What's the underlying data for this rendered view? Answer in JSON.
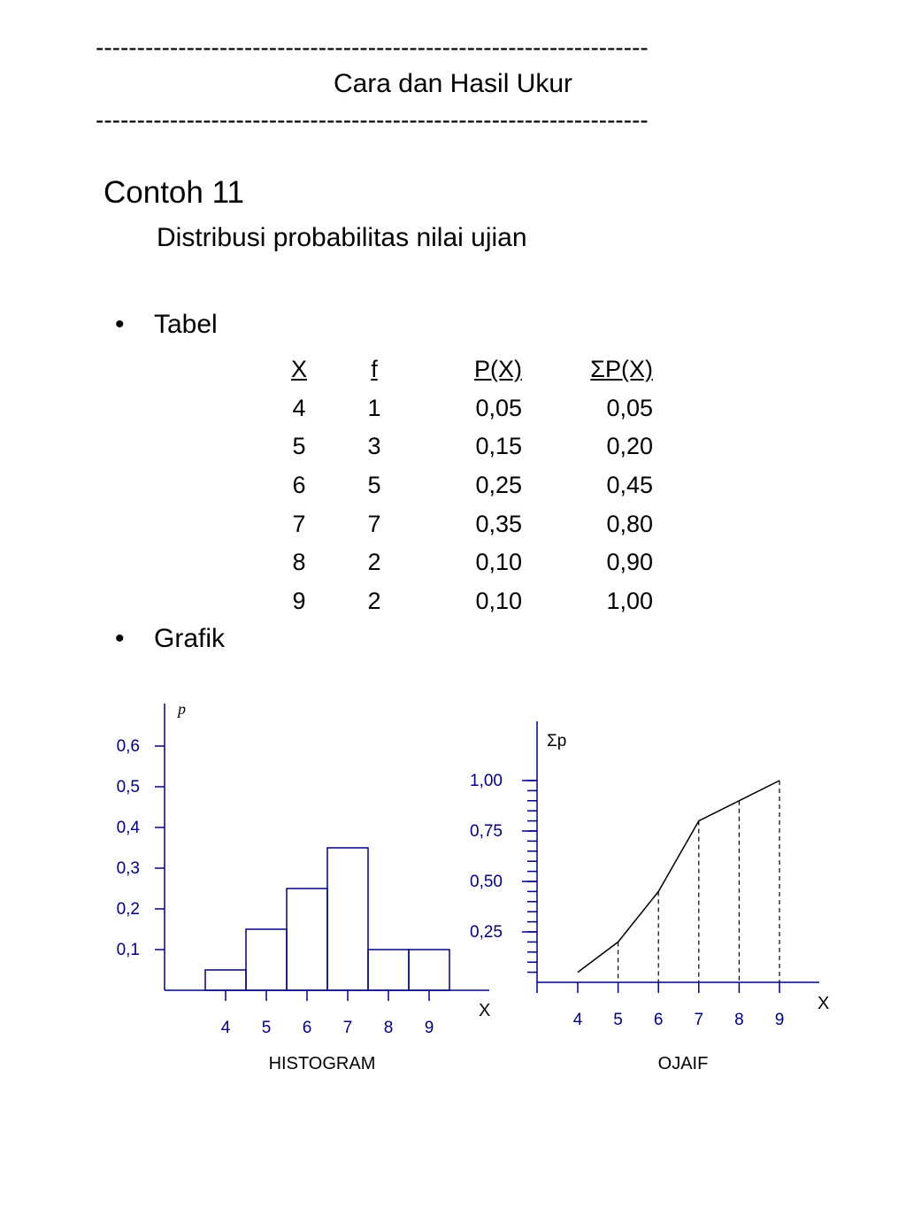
{
  "header": {
    "rule": "-------------------------------------------------------------------",
    "title": "Cara dan Hasil Ukur"
  },
  "example_title": "Contoh 11",
  "subtitle": "Distribusi probabilitas nilai ujian",
  "bullet_symbol": "•",
  "tabel_label": "Tabel",
  "grafik_label": "Grafik",
  "table": {
    "headers": [
      "X",
      "f",
      "P(X)",
      "ΣP(X)"
    ],
    "rows": [
      [
        "4",
        "1",
        "0,05",
        "0,05"
      ],
      [
        "5",
        "3",
        "0,15",
        "0,20"
      ],
      [
        "6",
        "5",
        "0,25",
        "0,45"
      ],
      [
        "7",
        "7",
        "0,35",
        "0,80"
      ],
      [
        "8",
        "2",
        "0,10",
        "0,90"
      ],
      [
        "9",
        "2",
        "0,10",
        "1,00"
      ]
    ]
  },
  "chart_data": [
    {
      "type": "bar",
      "title": "HISTOGRAM",
      "xlabel": "X",
      "ylabel": "p",
      "categories": [
        "4",
        "5",
        "6",
        "7",
        "8",
        "9"
      ],
      "values": [
        0.05,
        0.15,
        0.25,
        0.35,
        0.1,
        0.1
      ],
      "ylim": [
        0,
        0.6
      ],
      "yticks": [
        0.1,
        0.2,
        0.3,
        0.4,
        0.5,
        0.6
      ],
      "ytick_labels": [
        "0,1",
        "0,2",
        "0,3",
        "0,4",
        "0,5",
        "0,6"
      ],
      "bar_color": "#000080",
      "axis_color": "#000080",
      "grid": false
    },
    {
      "type": "line",
      "title": "OJAIF",
      "xlabel": "X",
      "ylabel": "Σp",
      "x": [
        4,
        5,
        6,
        7,
        8,
        9
      ],
      "y": [
        0.05,
        0.2,
        0.45,
        0.8,
        0.9,
        1.0
      ],
      "xtick_labels": [
        "4",
        "5",
        "6",
        "7",
        "8",
        "9"
      ],
      "ylim": [
        0,
        1.0
      ],
      "yticks": [
        0.25,
        0.5,
        0.75,
        1.0
      ],
      "ytick_labels": [
        "0,25",
        "0,50",
        "0,75",
        "1,00"
      ],
      "minor_yticks_per_major": 5,
      "drop_lines": "dashed",
      "line_color": "#000000",
      "axis_color": "#000080",
      "grid": false
    }
  ]
}
